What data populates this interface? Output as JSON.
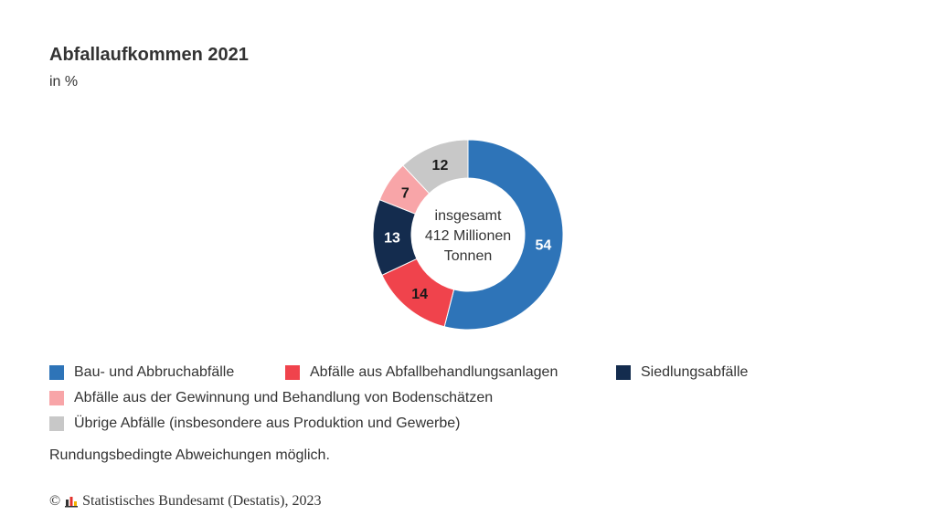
{
  "chart_data": {
    "type": "pie",
    "title": "Abfallaufkommen 2021",
    "subtitle": "in %",
    "center_label": [
      "insgesamt",
      "412 Millionen",
      "Tonnen"
    ],
    "categories": [
      "Bau- und Abbruchabfälle",
      "Abfälle aus Abfallbehandlungsanlagen",
      "Siedlungsabfälle",
      "Abfälle aus der Gewinnung und Behandlung von Bodenschätzen",
      "Übrige Abfälle (insbesondere aus Produktion und Gewerbe)"
    ],
    "values": [
      54,
      14,
      13,
      7,
      12
    ],
    "colors": [
      "#2e74b8",
      "#f0434c",
      "#142c4e",
      "#f8a5a8",
      "#c8c8c8"
    ],
    "label_colors": [
      "#ffffff",
      "#1a1a1a",
      "#ffffff",
      "#1a1a1a",
      "#1a1a1a"
    ],
    "legend_placement": "bottom"
  },
  "footnote": "Rundungsbedingte Abweichungen möglich.",
  "source": {
    "copyright": "©",
    "text": "Statistisches Bundesamt (Destatis), 2023",
    "logo_icon": "destatis-logo-icon"
  }
}
